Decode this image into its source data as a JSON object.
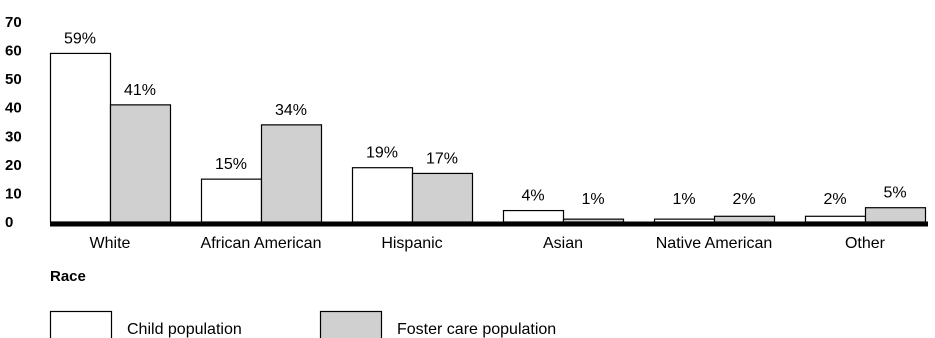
{
  "chart_data": {
    "type": "bar",
    "categories": [
      "White",
      "African American",
      "Hispanic",
      "Asian",
      "Native American",
      "Other"
    ],
    "series": [
      {
        "name": "Child population",
        "values": [
          59,
          15,
          19,
          4,
          1,
          2
        ],
        "labels": [
          "59%",
          "15%",
          "19%",
          "4%",
          "1%",
          "2%"
        ],
        "color": "#ffffff"
      },
      {
        "name": "Foster care population",
        "values": [
          41,
          34,
          17,
          1,
          2,
          5
        ],
        "labels": [
          "41%",
          "34%",
          "17%",
          "1%",
          "2%",
          "5%"
        ],
        "color": "#d0d0d0"
      }
    ],
    "xlabel": "Race",
    "ylabel": "",
    "ylim": [
      0,
      70
    ],
    "yticks": [
      "0",
      "10",
      "20",
      "30",
      "40",
      "50",
      "60",
      "70"
    ],
    "grid": false,
    "legend": "bottom-left"
  }
}
